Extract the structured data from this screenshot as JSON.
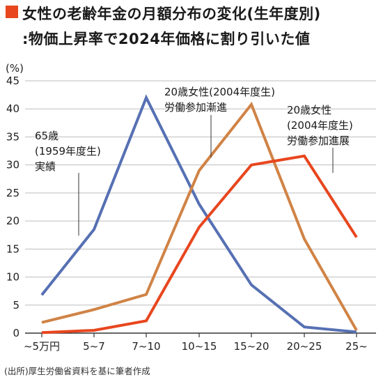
{
  "title": {
    "line1": "女性の老齢年金の月額分布の変化(生年度別)",
    "line2": ":物価上昇率で2024年価格に割り引いた値"
  },
  "source": "(出所)厚生労働省資料を基に筆者作成",
  "colors": {
    "accent": "#e8461e",
    "series": [
      "#5670b3",
      "#d08345",
      "#e8461e"
    ],
    "axis": "#333333",
    "grid": "#bdbdbd"
  },
  "chart_data": {
    "type": "line",
    "categories": [
      "~5万円",
      "5~7",
      "7~10",
      "10~15",
      "15~20",
      "20~25",
      "25~"
    ],
    "yunit": "(%)",
    "ylim": [
      0,
      45
    ],
    "yticks": [
      0,
      5,
      10,
      15,
      20,
      25,
      30,
      35,
      40,
      45
    ],
    "grid": true,
    "series": [
      {
        "name": [
          "65歳",
          "(1959年度生)",
          "実績"
        ],
        "values": [
          6.8,
          18.5,
          42,
          23,
          8.6,
          1.1,
          0.2
        ]
      },
      {
        "name": [
          "20歳女性(2004年度生)",
          "労働参加漸進"
        ],
        "values": [
          1.9,
          4.2,
          6.9,
          29,
          40.8,
          16.8,
          0.5
        ]
      },
      {
        "name": [
          "20歳女性",
          "(2004年度生)",
          "労働参加進展"
        ],
        "values": [
          0.1,
          0.5,
          2.2,
          18.9,
          30,
          31.6,
          17.1
        ]
      }
    ]
  }
}
